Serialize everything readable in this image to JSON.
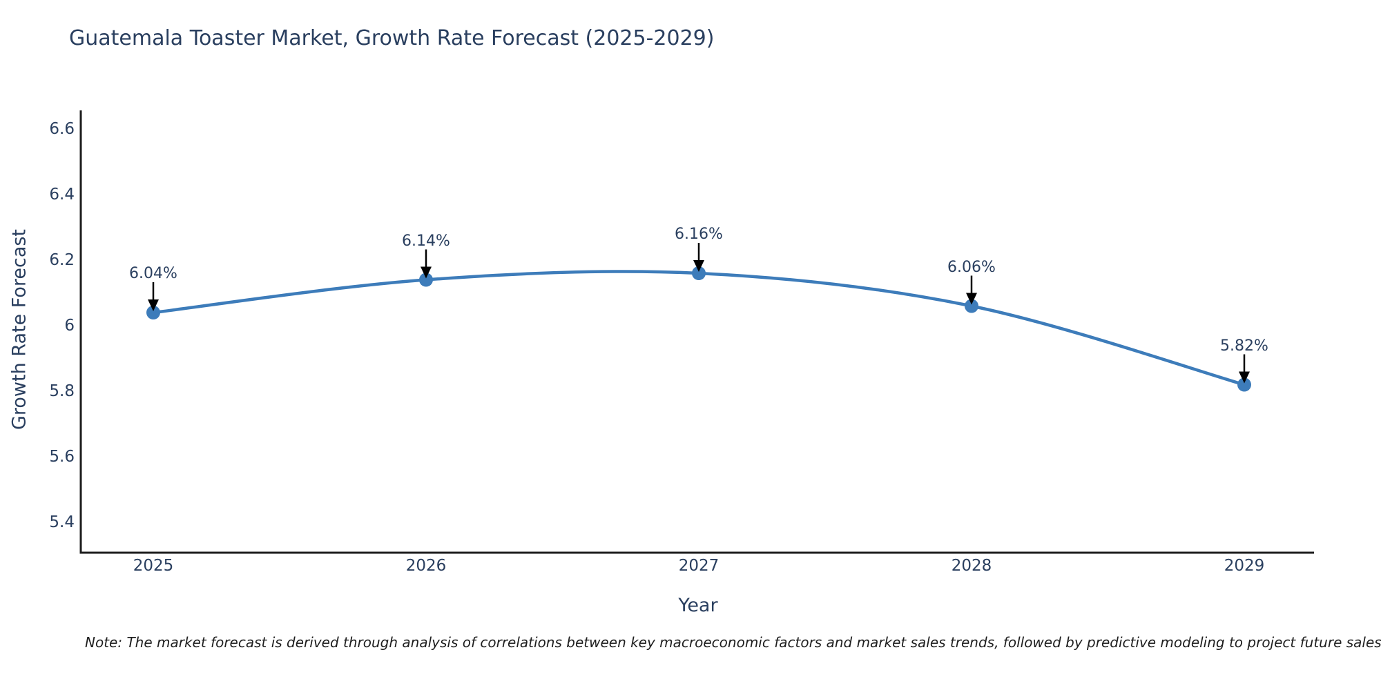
{
  "title": "Guatemala Toaster Market, Growth Rate Forecast (2025-2029)",
  "note": "Note: The market forecast is derived through analysis of correlations between key macroeconomic factors and market sales trends, followed by predictive modeling to project future sales",
  "chart_data": {
    "type": "line",
    "title": "Guatemala Toaster Market, Growth Rate Forecast (2025-2029)",
    "xlabel": "Year",
    "ylabel": "Growth Rate Forecast",
    "x": [
      2025,
      2026,
      2027,
      2028,
      2029
    ],
    "categories": [
      "2025",
      "2026",
      "2027",
      "2028",
      "2029"
    ],
    "series": [
      {
        "name": "Growth Rate Forecast",
        "values": [
          6.04,
          6.14,
          6.16,
          6.06,
          5.82
        ]
      }
    ],
    "point_labels": [
      "6.04%",
      "6.14%",
      "6.16%",
      "6.06%",
      "5.82%"
    ],
    "ytick_labels": [
      "6.6",
      "6.4",
      "6.2",
      "6",
      "5.8",
      "5.6",
      "5.4"
    ],
    "ytick_values": [
      6.6,
      6.4,
      6.2,
      6.0,
      5.8,
      5.6,
      5.4
    ],
    "ylim": [
      5.31,
      6.66
    ],
    "line_shape": "spline",
    "grid": false,
    "legend_position": "none",
    "line_color": "#3d7cba",
    "marker_color": "#3d7cba",
    "annotation_arrow_color": "#000000",
    "axis_color": "#1c1c1c",
    "text_color": "#2a3f5f"
  }
}
